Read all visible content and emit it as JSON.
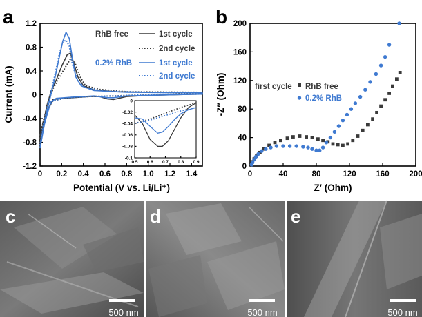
{
  "panels": {
    "a": {
      "label": "a"
    },
    "b": {
      "label": "b"
    },
    "c": {
      "label": "c",
      "scale_bar": "500 nm"
    },
    "d": {
      "label": "d",
      "scale_bar": "500 nm"
    },
    "e": {
      "label": "e",
      "scale_bar": "500 nm"
    }
  },
  "colors": {
    "black": "#3a3a3a",
    "blue": "#3f7ad1",
    "axis": "#000000"
  },
  "chart_data": [
    {
      "type": "line",
      "panel": "a",
      "xlabel": "Potential (V vs. Li/Li⁺)",
      "ylabel": "Current (mA)",
      "xlim": [
        0,
        1.5
      ],
      "ylim": [
        -1.2,
        1.2
      ],
      "x_ticks": [
        "0",
        "0.2",
        "0.4",
        "0.6",
        "0.8",
        "1.0",
        "1.2",
        "1.4"
      ],
      "y_ticks": [
        "1.2",
        "0.8",
        "0.4",
        "0",
        "-0.4",
        "-0.8",
        "-1.2"
      ],
      "legend": {
        "groups": [
          "RhB free",
          "0.2% RhB"
        ],
        "entries": [
          "1st cycle",
          "2nd cycle",
          "1st cycle",
          "2nd cycle"
        ],
        "placement": "top-right"
      },
      "series": [
        {
          "group": "RhB free",
          "name": "1st cycle",
          "color": "#3a3a3a",
          "style": "solid",
          "points": [
            [
              0.0,
              -0.75
            ],
            [
              0.03,
              -0.5
            ],
            [
              0.06,
              -0.2
            ],
            [
              0.1,
              0.05
            ],
            [
              0.15,
              0.25
            ],
            [
              0.2,
              0.48
            ],
            [
              0.25,
              0.67
            ],
            [
              0.28,
              0.7
            ],
            [
              0.3,
              0.6
            ],
            [
              0.35,
              0.3
            ],
            [
              0.4,
              0.15
            ],
            [
              0.5,
              0.08
            ],
            [
              0.7,
              0.05
            ],
            [
              1.0,
              0.04
            ],
            [
              1.5,
              0.03
            ],
            [
              1.5,
              0.01
            ],
            [
              1.0,
              -0.01
            ],
            [
              0.8,
              -0.03
            ],
            [
              0.68,
              -0.08
            ],
            [
              0.62,
              -0.07
            ],
            [
              0.55,
              -0.03
            ],
            [
              0.45,
              -0.03
            ],
            [
              0.3,
              -0.05
            ],
            [
              0.2,
              -0.06
            ],
            [
              0.12,
              -0.08
            ],
            [
              0.08,
              -0.22
            ],
            [
              0.05,
              -0.4
            ],
            [
              0.02,
              -0.6
            ],
            [
              0.0,
              -0.75
            ]
          ]
        },
        {
          "group": "RhB free",
          "name": "2nd cycle",
          "color": "#3a3a3a",
          "style": "dotted",
          "points": [
            [
              0.0,
              -0.7
            ],
            [
              0.03,
              -0.45
            ],
            [
              0.07,
              -0.15
            ],
            [
              0.12,
              0.1
            ],
            [
              0.18,
              0.3
            ],
            [
              0.23,
              0.45
            ],
            [
              0.28,
              0.6
            ],
            [
              0.32,
              0.55
            ],
            [
              0.37,
              0.3
            ],
            [
              0.42,
              0.15
            ],
            [
              0.55,
              0.09
            ],
            [
              0.8,
              0.05
            ],
            [
              1.5,
              0.04
            ],
            [
              1.5,
              0.02
            ],
            [
              1.0,
              0.0
            ],
            [
              0.7,
              -0.02
            ],
            [
              0.45,
              -0.03
            ],
            [
              0.25,
              -0.05
            ],
            [
              0.12,
              -0.1
            ],
            [
              0.07,
              -0.25
            ],
            [
              0.03,
              -0.45
            ],
            [
              0.0,
              -0.7
            ]
          ]
        },
        {
          "group": "0.2% RhB",
          "name": "1st cycle",
          "color": "#3f7ad1",
          "style": "solid",
          "points": [
            [
              0.0,
              -0.9
            ],
            [
              0.03,
              -0.6
            ],
            [
              0.06,
              -0.3
            ],
            [
              0.1,
              0.0
            ],
            [
              0.14,
              0.3
            ],
            [
              0.18,
              0.65
            ],
            [
              0.21,
              0.9
            ],
            [
              0.24,
              1.05
            ],
            [
              0.27,
              0.95
            ],
            [
              0.3,
              0.6
            ],
            [
              0.33,
              0.3
            ],
            [
              0.38,
              0.15
            ],
            [
              0.5,
              0.07
            ],
            [
              0.8,
              0.04
            ],
            [
              1.5,
              0.03
            ],
            [
              1.5,
              0.01
            ],
            [
              1.0,
              -0.01
            ],
            [
              0.8,
              -0.02
            ],
            [
              0.68,
              -0.05
            ],
            [
              0.62,
              -0.05
            ],
            [
              0.5,
              -0.02
            ],
            [
              0.3,
              -0.04
            ],
            [
              0.15,
              -0.06
            ],
            [
              0.1,
              -0.12
            ],
            [
              0.07,
              -0.3
            ],
            [
              0.04,
              -0.5
            ],
            [
              0.02,
              -0.7
            ],
            [
              0.0,
              -0.9
            ]
          ]
        },
        {
          "group": "0.2% RhB",
          "name": "2nd cycle",
          "color": "#3f7ad1",
          "style": "dotted",
          "points": [
            [
              0.0,
              -0.85
            ],
            [
              0.03,
              -0.55
            ],
            [
              0.06,
              -0.25
            ],
            [
              0.1,
              0.05
            ],
            [
              0.14,
              0.35
            ],
            [
              0.18,
              0.7
            ],
            [
              0.21,
              0.88
            ],
            [
              0.24,
              0.92
            ],
            [
              0.27,
              0.82
            ],
            [
              0.3,
              0.5
            ],
            [
              0.35,
              0.22
            ],
            [
              0.42,
              0.12
            ],
            [
              0.6,
              0.06
            ],
            [
              1.0,
              0.04
            ],
            [
              1.5,
              0.03
            ],
            [
              1.5,
              0.01
            ],
            [
              1.0,
              0.0
            ],
            [
              0.7,
              -0.02
            ],
            [
              0.45,
              -0.03
            ],
            [
              0.25,
              -0.05
            ],
            [
              0.12,
              -0.1
            ],
            [
              0.07,
              -0.25
            ],
            [
              0.03,
              -0.5
            ],
            [
              0.0,
              -0.85
            ]
          ]
        }
      ],
      "inset": {
        "xlim": [
          0.5,
          0.9
        ],
        "ylim": [
          -0.1,
          0
        ],
        "x_ticks": [
          "0.5",
          "0.6",
          "0.7",
          "0.8",
          "0.9"
        ],
        "y_ticks": [
          "0",
          "-0.02",
          "-0.04",
          "-0.06",
          "-0.08",
          "-0.1"
        ],
        "series": [
          {
            "name": "RhB free 1st cycle",
            "color": "#3a3a3a",
            "style": "solid",
            "points": [
              [
                0.5,
                -0.025
              ],
              [
                0.55,
                -0.04
              ],
              [
                0.6,
                -0.068
              ],
              [
                0.65,
                -0.08
              ],
              [
                0.68,
                -0.08
              ],
              [
                0.72,
                -0.07
              ],
              [
                0.76,
                -0.05
              ],
              [
                0.8,
                -0.03
              ],
              [
                0.85,
                -0.012
              ],
              [
                0.9,
                -0.004
              ]
            ]
          },
          {
            "name": "RhB free 2nd cycle",
            "color": "#3a3a3a",
            "style": "dotted",
            "points": [
              [
                0.5,
                -0.04
              ],
              [
                0.6,
                -0.032
              ],
              [
                0.7,
                -0.022
              ],
              [
                0.8,
                -0.012
              ],
              [
                0.9,
                -0.004
              ]
            ]
          },
          {
            "name": "0.2% RhB 1st cycle",
            "color": "#3f7ad1",
            "style": "solid",
            "points": [
              [
                0.5,
                -0.03
              ],
              [
                0.55,
                -0.032
              ],
              [
                0.6,
                -0.045
              ],
              [
                0.65,
                -0.057
              ],
              [
                0.68,
                -0.055
              ],
              [
                0.72,
                -0.045
              ],
              [
                0.76,
                -0.033
              ],
              [
                0.8,
                -0.023
              ],
              [
                0.85,
                -0.016
              ],
              [
                0.9,
                -0.012
              ]
            ]
          },
          {
            "name": "0.2% RhB 2nd cycle",
            "color": "#3f7ad1",
            "style": "dotted",
            "points": [
              [
                0.5,
                -0.04
              ],
              [
                0.6,
                -0.034
              ],
              [
                0.7,
                -0.026
              ],
              [
                0.8,
                -0.018
              ],
              [
                0.9,
                -0.012
              ]
            ]
          }
        ]
      }
    },
    {
      "type": "scatter",
      "panel": "b",
      "xlabel": "Z′ (Ohm)",
      "ylabel": "-Z″ (Ohm)",
      "xlim": [
        0,
        200
      ],
      "ylim": [
        0,
        200
      ],
      "x_ticks": [
        "0",
        "40",
        "80",
        "120",
        "160",
        "200"
      ],
      "y_ticks": [
        "200",
        "160",
        "120",
        "80",
        "40",
        "0"
      ],
      "legend": {
        "title": "first cycle",
        "entries": [
          "RhB free",
          "0.2% RhB"
        ],
        "placement": "center-left"
      },
      "series": [
        {
          "name": "RhB free",
          "color": "#3a3a3a",
          "marker": "square",
          "points": [
            [
              2,
              2
            ],
            [
              3,
              6
            ],
            [
              5,
              10
            ],
            [
              8,
              14
            ],
            [
              12,
              19
            ],
            [
              17,
              24
            ],
            [
              23,
              29
            ],
            [
              30,
              33
            ],
            [
              37,
              36
            ],
            [
              45,
              39
            ],
            [
              52,
              41
            ],
            [
              60,
              42
            ],
            [
              68,
              41
            ],
            [
              75,
              40
            ],
            [
              82,
              38
            ],
            [
              88,
              36
            ],
            [
              94,
              34
            ],
            [
              100,
              31
            ],
            [
              106,
              30
            ],
            [
              112,
              29
            ],
            [
              118,
              31
            ],
            [
              124,
              36
            ],
            [
              130,
              42
            ],
            [
              136,
              50
            ],
            [
              142,
              58
            ],
            [
              148,
              66
            ],
            [
              153,
              75
            ],
            [
              158,
              84
            ],
            [
              163,
              93
            ],
            [
              168,
              102
            ],
            [
              172,
              112
            ],
            [
              177,
              122
            ],
            [
              181,
              131
            ]
          ]
        },
        {
          "name": "0.2% RhB",
          "color": "#3f7ad1",
          "marker": "circle",
          "points": [
            [
              2,
              2
            ],
            [
              3,
              5
            ],
            [
              5,
              9
            ],
            [
              7,
              13
            ],
            [
              10,
              17
            ],
            [
              14,
              21
            ],
            [
              19,
              24
            ],
            [
              25,
              26
            ],
            [
              32,
              28
            ],
            [
              40,
              28
            ],
            [
              48,
              28
            ],
            [
              56,
              28
            ],
            [
              64,
              27
            ],
            [
              70,
              26
            ],
            [
              75,
              24
            ],
            [
              80,
              22
            ],
            [
              84,
              22
            ],
            [
              88,
              26
            ],
            [
              92,
              33
            ],
            [
              97,
              40
            ],
            [
              102,
              48
            ],
            [
              107,
              56
            ],
            [
              112,
              64
            ],
            [
              117,
              72
            ],
            [
              122,
              80
            ],
            [
              127,
              88
            ],
            [
              133,
              97
            ],
            [
              139,
              107
            ],
            [
              145,
              118
            ],
            [
              152,
              129
            ],
            [
              158,
              141
            ],
            [
              163,
              153
            ],
            [
              168,
              170
            ],
            [
              180,
              200
            ]
          ]
        }
      ]
    }
  ]
}
